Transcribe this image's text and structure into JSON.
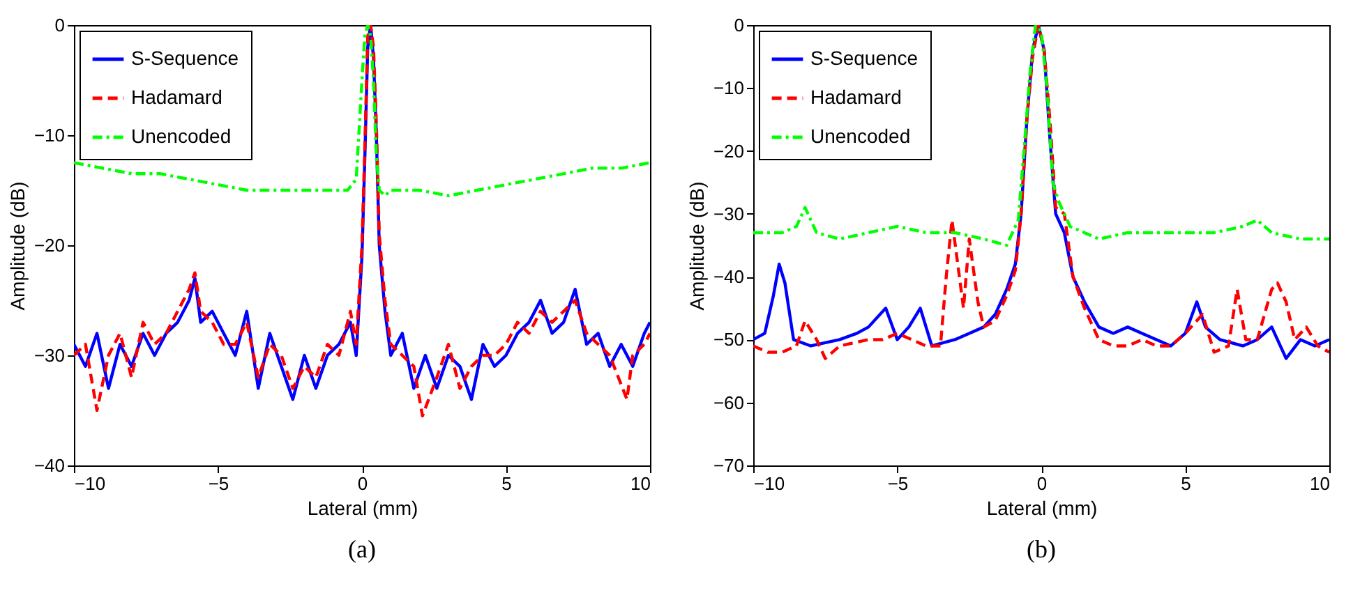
{
  "chart_data": [
    {
      "type": "line",
      "title": "(a)",
      "xlabel": "Lateral (mm)",
      "ylabel": "Amplitude (dB)",
      "xlim": [
        -10,
        10
      ],
      "ylim": [
        -40,
        0
      ],
      "xticks": [
        -10,
        -5,
        0,
        5,
        10
      ],
      "yticks": [
        -40,
        -30,
        -20,
        -10,
        0
      ],
      "grid": false,
      "legend": "top left",
      "series": [
        {
          "name": "S-Sequence",
          "color": "#0000ff",
          "line_style": "solid",
          "x": [
            -10,
            -9.6,
            -9.2,
            -8.8,
            -8.4,
            -8,
            -7.6,
            -7.2,
            -6.8,
            -6.4,
            -6,
            -5.8,
            -5.6,
            -5.2,
            -4.8,
            -4.4,
            -4,
            -3.6,
            -3.2,
            -2.8,
            -2.4,
            -2,
            -1.6,
            -1.2,
            -0.8,
            -0.4,
            -0.2,
            0,
            0.1,
            0.2,
            0.3,
            0.4,
            0.5,
            0.6,
            0.8,
            1,
            1.4,
            1.8,
            2.2,
            2.6,
            3,
            3.4,
            3.8,
            4.2,
            4.6,
            5,
            5.4,
            5.8,
            6.2,
            6.6,
            7,
            7.4,
            7.8,
            8.2,
            8.6,
            9,
            9.4,
            9.8,
            10
          ],
          "values": [
            -29,
            -31,
            -28,
            -33,
            -29,
            -31,
            -28,
            -30,
            -28,
            -27,
            -25,
            -23,
            -27,
            -26,
            -28,
            -30,
            -26,
            -33,
            -28,
            -31,
            -34,
            -30,
            -33,
            -30,
            -29,
            -27,
            -30,
            -21,
            -12,
            -2,
            0,
            -3,
            -10,
            -20,
            -26,
            -30,
            -28,
            -33,
            -30,
            -33,
            -30,
            -31,
            -34,
            -29,
            -31,
            -30,
            -28,
            -27,
            -25,
            -28,
            -27,
            -24,
            -29,
            -28,
            -31,
            -29,
            -31,
            -28,
            -27
          ]
        },
        {
          "name": "Hadamard",
          "color": "#ff0000",
          "line_style": "dashed",
          "x": [
            -10,
            -9.6,
            -9.2,
            -8.8,
            -8.4,
            -8,
            -7.6,
            -7.2,
            -6.8,
            -6.4,
            -6,
            -5.8,
            -5.6,
            -5.2,
            -4.8,
            -4.4,
            -4,
            -3.6,
            -3.2,
            -2.8,
            -2.4,
            -2,
            -1.6,
            -1.2,
            -0.8,
            -0.4,
            -0.2,
            0,
            0.1,
            0.2,
            0.3,
            0.4,
            0.5,
            0.6,
            0.8,
            1,
            1.4,
            1.8,
            2.1,
            2.6,
            3,
            3.4,
            3.8,
            4.2,
            4.6,
            5,
            5.4,
            5.8,
            6.2,
            6.6,
            7,
            7.4,
            7.8,
            8.2,
            8.6,
            9.2,
            9.4,
            9.8,
            10
          ],
          "values": [
            -30,
            -29,
            -35,
            -30,
            -28,
            -32,
            -27,
            -29,
            -28,
            -26,
            -24,
            -22.5,
            -26,
            -27,
            -29,
            -29,
            -27,
            -32,
            -29,
            -30,
            -33,
            -31,
            -32,
            -29,
            -30,
            -26,
            -29,
            -20,
            -11,
            -1,
            0,
            -2,
            -9,
            -19,
            -25,
            -29,
            -30,
            -31,
            -35.5,
            -32,
            -29,
            -33,
            -31,
            -30,
            -30,
            -29,
            -27,
            -28,
            -26,
            -27,
            -26,
            -25,
            -28,
            -29,
            -30,
            -34,
            -30,
            -29,
            -28
          ]
        },
        {
          "name": "Unencoded",
          "color": "#00ff00",
          "line_style": "dashdot",
          "x": [
            -10,
            -9,
            -8,
            -7,
            -6,
            -5,
            -4,
            -3,
            -2,
            -1,
            -0.5,
            -0.2,
            0,
            0.1,
            0.2,
            0.3,
            0.4,
            0.5,
            0.6,
            0.8,
            1,
            2,
            3,
            4,
            5,
            6,
            7,
            8,
            9,
            10
          ],
          "values": [
            -12.5,
            -13,
            -13.5,
            -13.5,
            -14,
            -14.5,
            -15,
            -15,
            -15,
            -15,
            -15,
            -14,
            -5,
            -1,
            0,
            -1,
            -5,
            -12,
            -15,
            -15.5,
            -15,
            -15,
            -15.5,
            -15,
            -14.5,
            -14,
            -13.5,
            -13,
            -13,
            -12.5
          ]
        }
      ]
    },
    {
      "type": "line",
      "title": "(b)",
      "xlabel": "Lateral (mm)",
      "ylabel": "Amplitude (dB)",
      "xlim": [
        -10,
        10
      ],
      "ylim": [
        -70,
        0
      ],
      "xticks": [
        -10,
        -5,
        0,
        5,
        10
      ],
      "yticks": [
        -70,
        -60,
        -50,
        -40,
        -30,
        -20,
        -10,
        0
      ],
      "grid": false,
      "legend": "top left",
      "series": [
        {
          "name": "S-Sequence",
          "color": "#0000ff",
          "line_style": "solid",
          "x": [
            -10,
            -9.6,
            -9.3,
            -9.1,
            -8.9,
            -8.6,
            -8,
            -7,
            -6.4,
            -6,
            -5.4,
            -5,
            -4.6,
            -4.2,
            -3.8,
            -3,
            -2.5,
            -2,
            -1.6,
            -1.2,
            -0.9,
            -0.7,
            -0.5,
            -0.3,
            -0.1,
            0.1,
            0.3,
            0.5,
            0.8,
            1.1,
            1.5,
            2,
            2.5,
            3,
            3.5,
            4,
            4.5,
            5,
            5.4,
            5.7,
            6.2,
            7,
            7.5,
            8,
            8.5,
            9,
            9.5,
            10
          ],
          "values": [
            -50,
            -49,
            -43,
            -38,
            -41,
            -50,
            -51,
            -50,
            -49,
            -48,
            -45,
            -50,
            -48,
            -45,
            -51,
            -50,
            -49,
            -48,
            -46,
            -42,
            -38,
            -30,
            -15,
            -4,
            0,
            -4,
            -18,
            -30,
            -33,
            -40,
            -44,
            -48,
            -49,
            -48,
            -49,
            -50,
            -51,
            -49,
            -44,
            -48,
            -50,
            -51,
            -50,
            -48,
            -53,
            -50,
            -51,
            -50
          ]
        },
        {
          "name": "Hadamard",
          "color": "#ff0000",
          "line_style": "dashed",
          "x": [
            -10,
            -9.5,
            -9,
            -8.5,
            -8.2,
            -7.8,
            -7.5,
            -7,
            -6,
            -5.5,
            -5,
            -4.5,
            -4,
            -3.5,
            -3.3,
            -3.1,
            -2.9,
            -2.7,
            -2.5,
            -2.2,
            -2,
            -1.6,
            -1.2,
            -0.9,
            -0.7,
            -0.5,
            -0.3,
            -0.1,
            0.1,
            0.3,
            0.5,
            0.8,
            1.1,
            1.5,
            2,
            2.5,
            3,
            3.5,
            4,
            4.5,
            5,
            5.6,
            6,
            6.5,
            6.8,
            7.1,
            7.5,
            8,
            8.2,
            8.5,
            8.8,
            9.2,
            9.6,
            10
          ],
          "values": [
            -51,
            -52,
            -52,
            -51,
            -47,
            -50,
            -53,
            -51,
            -50,
            -50,
            -49,
            -50,
            -51,
            -51,
            -40,
            -31,
            -38,
            -45,
            -34,
            -44,
            -48,
            -47,
            -43,
            -39,
            -30,
            -15,
            -5,
            0,
            -4,
            -15,
            -29,
            -30,
            -40,
            -45,
            -50,
            -51,
            -51,
            -50,
            -51,
            -51,
            -49,
            -46,
            -52,
            -51,
            -42,
            -50,
            -50,
            -42,
            -41,
            -44,
            -50,
            -48,
            -51,
            -52
          ]
        },
        {
          "name": "Unencoded",
          "color": "#00ff00",
          "line_style": "dashdot",
          "x": [
            -10,
            -9.5,
            -9,
            -8.5,
            -8.2,
            -7.8,
            -7,
            -6,
            -5,
            -4,
            -3,
            -2,
            -1.2,
            -0.8,
            -0.6,
            -0.4,
            -0.2,
            0,
            0.2,
            0.4,
            0.6,
            1,
            1.5,
            2,
            3,
            4,
            5,
            6,
            7,
            7.5,
            8,
            9,
            9.5,
            10
          ],
          "values": [
            -33,
            -33,
            -33,
            -32,
            -29,
            -33,
            -34,
            -33,
            -32,
            -33,
            -33,
            -34,
            -35,
            -31,
            -20,
            -8,
            0,
            -1,
            -10,
            -25,
            -28,
            -32,
            -33,
            -34,
            -33,
            -33,
            -33,
            -33,
            -32,
            -31,
            -33,
            -34,
            -34,
            -34
          ]
        }
      ]
    }
  ]
}
